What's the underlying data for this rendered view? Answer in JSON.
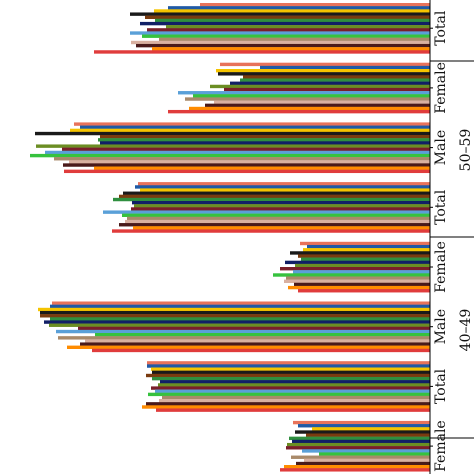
{
  "chart_data": {
    "type": "bar",
    "orientation": "horizontal",
    "grid": false,
    "legend": "none",
    "xlim": [
      0,
      430
    ],
    "series_colors": [
      "#e8735a",
      "#1f5aa6",
      "#f5c400",
      "#1a1a1a",
      "#7a3b0f",
      "#2f8f3f",
      "#111f66",
      "#6b8e23",
      "#7a1f2a",
      "#5aa0d8",
      "#36c23e",
      "#a98a6a",
      "#d9b0a0",
      "#4a1a1a",
      "#ff8c00",
      "#e03c3c"
    ],
    "groups": [
      {
        "label": "Total",
        "values": [
          230,
          262,
          276,
          300,
          285,
          275,
          290,
          264,
          283,
          300,
          288,
          271,
          299,
          294,
          278,
          336
        ]
      },
      {
        "label": "Female",
        "values": [
          210,
          170,
          214,
          212,
          187,
          190,
          200,
          220,
          206,
          252,
          237,
          245,
          216,
          225,
          241,
          262
        ]
      },
      {
        "label": "Male",
        "values": [
          356,
          350,
          360,
          395,
          330,
          332,
          330,
          394,
          368,
          385,
          400,
          376,
          361,
          367,
          336,
          366
        ]
      },
      {
        "label": "Total",
        "values": [
          292,
          295,
          290,
          307,
          311,
          317,
          298,
          296,
          299,
          327,
          308,
          303,
          305,
          311,
          297,
          318
        ]
      },
      {
        "label": "Female",
        "values": [
          130,
          123,
          127,
          140,
          132,
          129,
          145,
          135,
          150,
          137,
          157,
          144,
          146,
          136,
          142,
          132
        ]
      },
      {
        "label": "Male",
        "values": [
          378,
          380,
          392,
          390,
          390,
          380,
          386,
          381,
          352,
          374,
          335,
          372,
          345,
          350,
          363,
          338
        ]
      },
      {
        "label": "Total",
        "values": [
          283,
          283,
          279,
          278,
          284,
          278,
          270,
          272,
          279,
          275,
          282,
          268,
          271,
          284,
          288,
          274
        ]
      },
      {
        "label": "Female",
        "values": [
          137,
          132,
          118,
          135,
          124,
          141,
          138,
          143,
          144,
          128,
          111,
          139,
          126,
          134,
          146,
          150
        ]
      }
    ],
    "age_groups": [
      {
        "label": "50–59"
      },
      {
        "label": "40–49"
      }
    ]
  }
}
